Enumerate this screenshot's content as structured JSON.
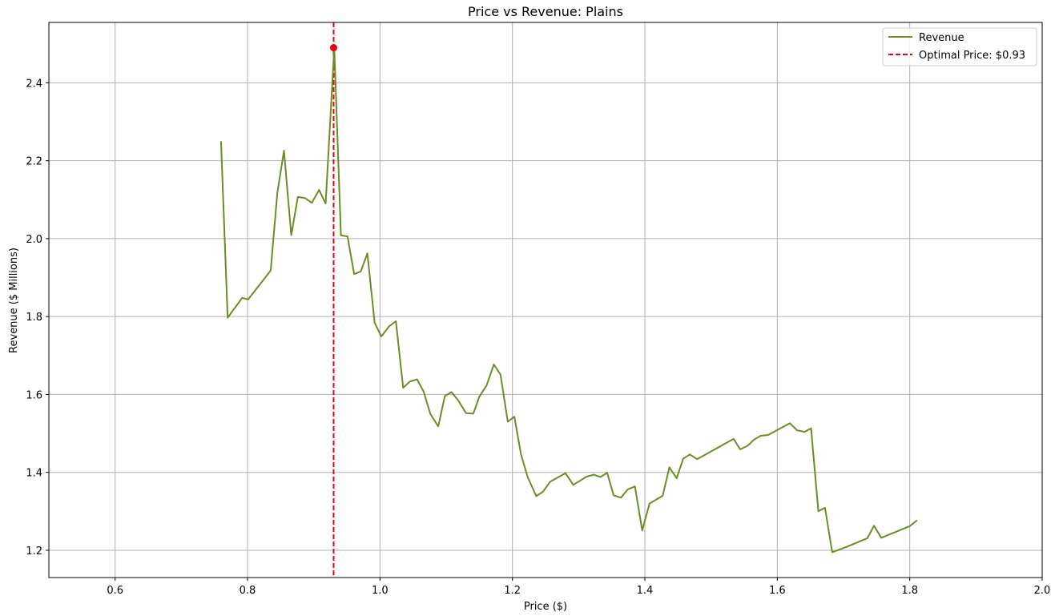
{
  "chart_data": {
    "type": "line",
    "title": "Price vs Revenue: Plains",
    "xlabel": "Price ($)",
    "ylabel": "Revenue ($ Millions)",
    "xlim": [
      0.5,
      2.0
    ],
    "ylim": [
      1.13,
      2.555
    ],
    "xticks": [
      0.6,
      0.8,
      1.0,
      1.2,
      1.4,
      1.6,
      1.8,
      2.0
    ],
    "xtick_labels": [
      "0.6",
      "0.8",
      "1.0",
      "1.2",
      "1.4",
      "1.6",
      "1.8",
      "2.0"
    ],
    "yticks": [
      1.2,
      1.4,
      1.6,
      1.8,
      2.0,
      2.2,
      2.4
    ],
    "ytick_labels": [
      "1.2",
      "1.4",
      "1.6",
      "1.8",
      "2.0",
      "2.2",
      "2.4"
    ],
    "grid": true,
    "legend_position": "top-right",
    "series": [
      {
        "name": "Revenue",
        "color": "#6b8e23",
        "x": [
          0.76,
          0.77,
          0.792,
          0.801,
          0.835,
          0.845,
          0.855,
          0.866,
          0.876,
          0.887,
          0.897,
          0.908,
          0.918,
          0.931,
          0.941,
          0.951,
          0.961,
          0.971,
          0.981,
          0.992,
          1.002,
          1.014,
          1.024,
          1.035,
          1.045,
          1.056,
          1.066,
          1.076,
          1.088,
          1.098,
          1.108,
          1.118,
          1.13,
          1.141,
          1.15,
          1.161,
          1.172,
          1.182,
          1.193,
          1.203,
          1.213,
          1.223,
          1.236,
          1.246,
          1.257,
          1.28,
          1.292,
          1.312,
          1.323,
          1.333,
          1.343,
          1.353,
          1.364,
          1.374,
          1.385,
          1.396,
          1.407,
          1.427,
          1.437,
          1.448,
          1.458,
          1.468,
          1.479,
          1.534,
          1.544,
          1.555,
          1.565,
          1.575,
          1.586,
          1.619,
          1.63,
          1.641,
          1.651,
          1.662,
          1.672,
          1.683,
          1.705,
          1.736,
          1.746,
          1.757,
          1.8,
          1.811
        ],
        "y": [
          2.25,
          1.797,
          1.848,
          1.844,
          1.918,
          2.117,
          2.226,
          2.009,
          2.107,
          2.104,
          2.092,
          2.125,
          2.09,
          2.49,
          2.008,
          2.006,
          1.909,
          1.916,
          1.962,
          1.784,
          1.749,
          1.775,
          1.788,
          1.617,
          1.633,
          1.639,
          1.607,
          1.55,
          1.518,
          1.596,
          1.606,
          1.585,
          1.552,
          1.551,
          1.594,
          1.623,
          1.677,
          1.651,
          1.53,
          1.543,
          1.446,
          1.388,
          1.339,
          1.35,
          1.376,
          1.398,
          1.368,
          1.389,
          1.394,
          1.388,
          1.399,
          1.341,
          1.335,
          1.356,
          1.364,
          1.251,
          1.32,
          1.34,
          1.413,
          1.385,
          1.435,
          1.446,
          1.434,
          1.486,
          1.459,
          1.468,
          1.484,
          1.494,
          1.496,
          1.526,
          1.508,
          1.504,
          1.513,
          1.3,
          1.309,
          1.195,
          1.209,
          1.231,
          1.263,
          1.232,
          1.262,
          1.277
        ]
      }
    ],
    "optimal": {
      "price": 0.93,
      "revenue": 2.49,
      "label": "Optimal Price: $0.93",
      "color": "#e8000b"
    }
  }
}
